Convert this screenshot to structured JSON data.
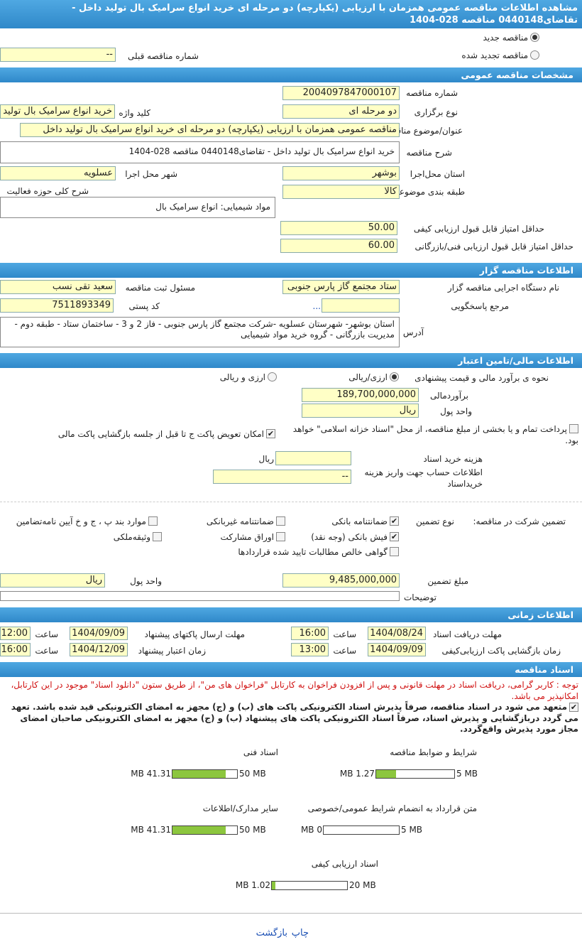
{
  "header": {
    "title": "مشاهده اطلاعات مناقصه عمومی همزمان با ارزیابی (یکپارچه) دو مرحله ای خرید انواع سرامیک بال تولید داخل - تقاضای0440148 مناقصه 028-1404"
  },
  "tender_kind": {
    "new": {
      "label": "مناقصه جدید",
      "checked": true
    },
    "renewed": {
      "label": "مناقصه تجدید شده",
      "checked": false
    },
    "previous_number": {
      "label": "شماره مناقصه قبلی",
      "value": "--"
    }
  },
  "general": {
    "title": "مشخصات مناقصه عمومی",
    "number": {
      "label": "شماره مناقصه",
      "value": "2004097847000107"
    },
    "holding_type": {
      "label": "نوع برگزاری",
      "value": "دو مرحله ای"
    },
    "keyword": {
      "label": "کلید واژه",
      "value": "خرید انواع سرامیک بال تولید"
    },
    "subject": {
      "label": "عنوان/موضوع مناقصه",
      "value": "مناقصه عمومی همزمان با ارزیابی (یکپارچه) دو مرحله ای خرید انواع سرامیک بال تولید داخل"
    },
    "description": {
      "label": "شرح مناقصه",
      "value": "خرید انواع سرامیک بال تولید داخل - تقاضای0440148 مناقصه 028-1404"
    },
    "province": {
      "label": "استان محل‌اجرا",
      "value": "بوشهر"
    },
    "city": {
      "label": "شهر محل اجرا",
      "value": "عسلویه"
    },
    "category": {
      "label": "طبقه بندی موضوعی",
      "value": "کالا"
    },
    "activity": {
      "label": "شرح کلی حوزه فعالیت",
      "value": "مواد  شیمیایی: انواع سرامیک بال"
    },
    "quality_min": {
      "label": "حداقل  امتیاز قابل قبول  ارزیابی کیفی",
      "value": "50.00"
    },
    "technical_min": {
      "label": "حداقل  امتیاز قابل قبول  ارزیابی فنی/بازرگانی",
      "value": "60.00"
    }
  },
  "organizer": {
    "title": "اطلاعات مناقصه گزار",
    "agency": {
      "label": "نام دستگاه اجرایی مناقصه گزار",
      "value": "ستاد مجتمع گاز پارس جنوبی"
    },
    "registrar": {
      "label": "مسئول ثبت مناقصه",
      "value": "سعید تقی نسب"
    },
    "reference": {
      "label": "مرجع پاسخگویی",
      "link": "..."
    },
    "postal": {
      "label": "کد پستی",
      "value": "7511893349"
    },
    "address": {
      "label": "آدرس",
      "value": "استان بوشهر- شهرستان عسلویه -شرکت مجتمع گاز پارس جنوبی - فاز 2 و 3 - ساختمان ستاد - طبقه دوم - مدیریت بازرگانی - گروه خرید مواد شیمیایی"
    }
  },
  "finance": {
    "title": "اطلاعات مالی/تامین اعتبار",
    "method": {
      "label": "نحوه ی برآورد مالی و قیمت پیشنهادی",
      "options": [
        {
          "label": "ارزی/ریالی",
          "checked": true
        },
        {
          "label": "ارزی و ریالی",
          "checked": false
        }
      ]
    },
    "estimate": {
      "label": "برآوردمالی",
      "value": "189,700,000,000"
    },
    "currency": {
      "label": "واحد پول",
      "value": "ریال"
    },
    "treasury": {
      "label": "پرداخت تمام و یا بخشی از مبلغ مناقصه، از محل \"اسناد خزانه اسلامی\" خواهد بود.",
      "checked": false
    },
    "envelope_swap": {
      "label": "امکان تعویض پاکت ج تا قبل از جلسه بازگشایی پاکت مالی",
      "checked": true
    },
    "doc_fee": {
      "label": "هزینه خرید اسناد",
      "unit": "ریال"
    },
    "account": {
      "label": "اطلاعات حساب جهت واریز هزینه خریداسناد",
      "value": "--"
    }
  },
  "guarantee": {
    "label": "تضمین شرکت در مناقصه:",
    "type_label": "نوع تضمین",
    "options": [
      {
        "label": "ضمانتنامه بانکی",
        "checked": true
      },
      {
        "label": "ضمانتنامه غیربانکی",
        "checked": false
      },
      {
        "label": "موارد بند پ ، ج و خ آیین نامه‌تضامین",
        "checked": false
      },
      {
        "label": "فیش بانکی (وجه نقد)",
        "checked": true
      },
      {
        "label": "اوراق مشارکت",
        "checked": false
      },
      {
        "label": "وثیقه‌ملکی",
        "checked": false
      },
      {
        "label": "گواهی خالص مطالبات تایید شده قراردادها",
        "checked": false
      }
    ],
    "amount": {
      "label": "مبلغ تضمین",
      "value": "9,485,000,000"
    },
    "currency": {
      "label": "واحد پول",
      "value": "ریال"
    },
    "notes": {
      "label": "توضیحات"
    }
  },
  "timing": {
    "title": "اطلاعات زمانی",
    "doc_receipt": {
      "label": "مهلت دریافت اسناد",
      "date": "1404/08/24",
      "hour_label": "ساعت",
      "time": "16:00"
    },
    "submission": {
      "label": "مهلت ارسال پاکتهای پیشنهاد",
      "date": "1404/09/09",
      "hour_label": "ساعت",
      "time": "12:00"
    },
    "quality_open": {
      "label": "زمان بازگشایی پاکت ارزیابی‌کیفی",
      "date": "1404/09/09",
      "hour_label": "ساعت",
      "time": "13:00"
    },
    "validity": {
      "label": "زمان اعتبار پیشنهاد",
      "date": "1404/12/09",
      "hour_label": "ساعت",
      "time": "16:00"
    }
  },
  "documents": {
    "title": "اسناد مناقصه",
    "notice": "توجه : کاربر گرامی، دریافت اسناد در مهلت قانونی و پس از افزودن فراخوان به کارتابل \"فراخوان های من\"، از طریق ستون \"دانلود اسناد\" موجود در این کارتابل، امکانپذیر می باشد.",
    "commitment": {
      "label": "متعهد می شود در اسناد مناقصه، صرفاً پذیرش اسناد الکترونیکی پاکت های (ب) و (ج) مجهز به امضای الکترونیکی قید شده باشد. تعهد می گردد دربازگشایی و پذیرش اسناد، صرفاً اسناد الکترونیکی پاکت های پیشنهاد (ب) و (ج) مجهز به امضای الکترونیکی صاحبان امضای مجاز مورد پذیرش واقع‌گردد.",
      "checked": true
    },
    "files": [
      {
        "title": "شرایط و ضوابط مناقصه",
        "used": {
          "value": 1.27,
          "label": "1.27 MB"
        },
        "capacity": {
          "value": 5,
          "label": "5 MB"
        }
      },
      {
        "title": "اسناد فنی",
        "used": {
          "value": 41.31,
          "label": "41.31 MB"
        },
        "capacity": {
          "value": 50,
          "label": "50 MB"
        }
      },
      {
        "title": "متن قرارداد به انضمام شرایط عمومی/خصوصی",
        "used": {
          "value": 0,
          "label": "0 MB"
        },
        "capacity": {
          "value": 5,
          "label": "5 MB"
        }
      },
      {
        "title": "سایر مدارک/اطلاعات",
        "used": {
          "value": 41.31,
          "label": "41.31 MB"
        },
        "capacity": {
          "value": 50,
          "label": "50 MB"
        }
      },
      {
        "title": "اسناد  ارزیابی کیفی",
        "used": {
          "value": 1.02,
          "label": "1.02 MB"
        },
        "capacity": {
          "value": 20,
          "label": "20 MB"
        }
      }
    ]
  },
  "footer": {
    "links": [
      "چاپ",
      "بازگشت"
    ]
  }
}
